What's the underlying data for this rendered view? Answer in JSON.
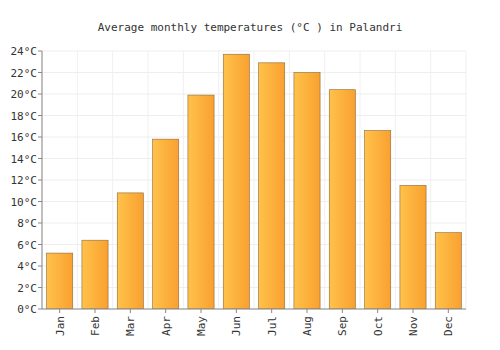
{
  "chart_data": {
    "type": "bar",
    "title": "Average monthly temperatures (°C ) in Palandri",
    "categories": [
      "Jan",
      "Feb",
      "Mar",
      "Apr",
      "May",
      "Jun",
      "Jul",
      "Aug",
      "Sep",
      "Oct",
      "Nov",
      "Dec"
    ],
    "values": [
      5.2,
      6.4,
      10.8,
      15.8,
      19.9,
      23.7,
      22.9,
      22.0,
      20.4,
      16.6,
      11.5,
      7.1
    ],
    "color": "#f9a030",
    "ylim": [
      0,
      24
    ],
    "yticks": [
      {
        "value": 0,
        "label": "0°C"
      },
      {
        "value": 2,
        "label": "2°C"
      },
      {
        "value": 4,
        "label": "4°C"
      },
      {
        "value": 6,
        "label": "6°C"
      },
      {
        "value": 8,
        "label": "8°C"
      },
      {
        "value": 10,
        "label": "10°C"
      },
      {
        "value": 12,
        "label": "12°C"
      },
      {
        "value": 14,
        "label": "14°C"
      },
      {
        "value": 16,
        "label": "16°C"
      },
      {
        "value": 18,
        "label": "18°C"
      },
      {
        "value": 20,
        "label": "20°C"
      },
      {
        "value": 22,
        "label": "22°C"
      },
      {
        "value": 24,
        "label": "24°C"
      }
    ],
    "grid": true
  }
}
